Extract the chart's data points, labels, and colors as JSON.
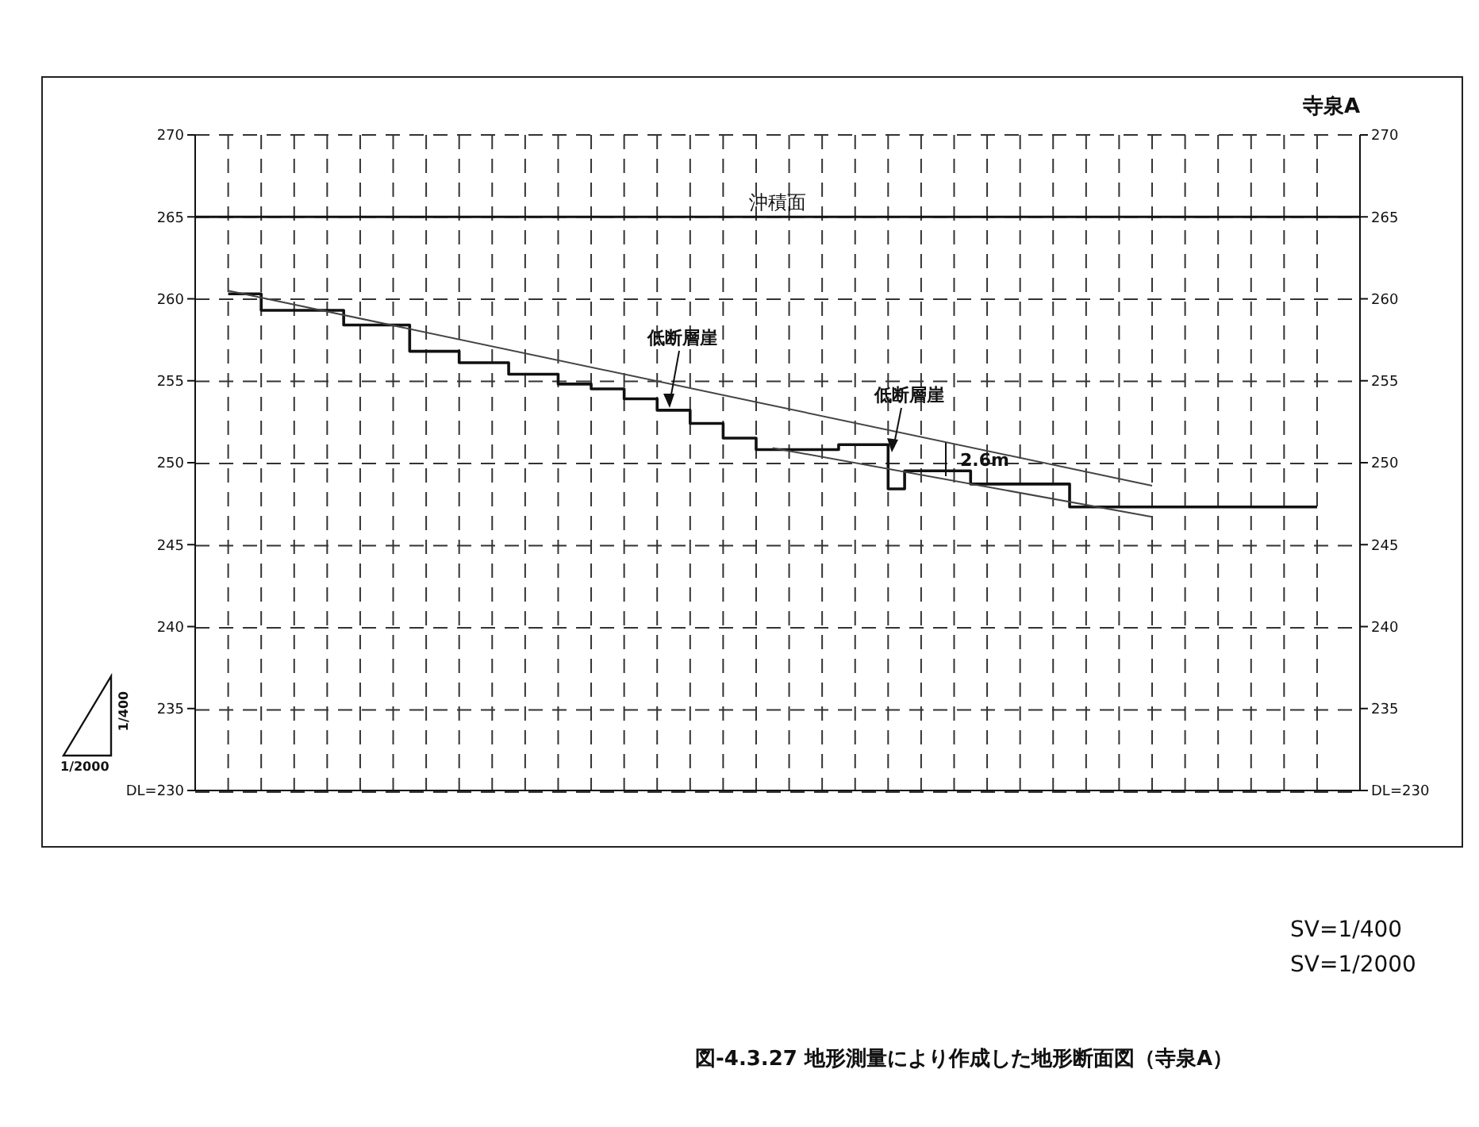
{
  "chart_data": {
    "type": "step",
    "title": "図-4.3.27 地形測量により作成した地形断面図（寺泉A）",
    "subtitle": "寺泉A",
    "categories": [
      null,
      null,
      null,
      null,
      null,
      null,
      null,
      null,
      null,
      null,
      null,
      null,
      null,
      null,
      null,
      null,
      null,
      null,
      null,
      null,
      null,
      null,
      null,
      null,
      null,
      null,
      null,
      null,
      null,
      null,
      null,
      null,
      null,
      null,
      null,
      null,
      null,
      null,
      null,
      null,
      null,
      null,
      null,
      null,
      null,
      null,
      null,
      null,
      null,
      null,
      null,
      null,
      null,
      null,
      null,
      null,
      null,
      null,
      null,
      null,
      null,
      null,
      null,
      null,
      null,
      null,
      null
    ],
    "series": [
      {
        "type": "step",
        "color": "#111111",
        "values": [
          260.3,
          260.3,
          259.3,
          259.3,
          259.3,
          259.3,
          259.3,
          258.4,
          258.4,
          258.4,
          258.4,
          256.8,
          256.8,
          256.8,
          256.1,
          256.1,
          256.1,
          255.4,
          255.4,
          255.4,
          254.8,
          254.8,
          254.5,
          254.5,
          253.9,
          253.9,
          253.2,
          253.2,
          252.4,
          252.4,
          251.5,
          251.5,
          250.8,
          250.8,
          250.8,
          250.8,
          250.8,
          251.1,
          251.1,
          251.1,
          248.4,
          249.5,
          249.5,
          249.5,
          249.5,
          248.7,
          248.7,
          248.7,
          248.7,
          248.7,
          248.7,
          247.3,
          247.3,
          247.3,
          247.3,
          247.3,
          247.3,
          247.3,
          247.3,
          247.3,
          247.3,
          247.3,
          247.3,
          247.3,
          247.3,
          247.3,
          247.3
        ]
      },
      {
        "type": "line",
        "color": "#444444",
        "values": [
          260.5,
          null,
          null,
          null,
          null,
          null,
          null,
          null,
          null,
          null,
          null,
          null,
          null,
          null,
          null,
          null,
          null,
          null,
          null,
          null,
          null,
          null,
          null,
          null,
          null,
          null,
          null,
          null,
          null,
          null,
          null,
          null,
          null,
          null,
          null,
          null,
          null,
          null,
          null,
          null,
          null,
          null,
          null,
          null,
          null,
          null,
          null,
          null,
          null,
          null,
          null,
          null,
          null,
          null,
          null,
          null,
          248.6,
          null,
          null,
          null,
          null,
          null,
          null,
          null,
          null,
          null,
          null
        ]
      },
      {
        "type": "line",
        "color": "#444444",
        "values": [
          null,
          null,
          null,
          null,
          null,
          null,
          null,
          null,
          null,
          null,
          null,
          null,
          null,
          null,
          null,
          null,
          null,
          null,
          null,
          null,
          null,
          null,
          null,
          null,
          null,
          null,
          null,
          null,
          null,
          null,
          null,
          null,
          null,
          250.9,
          null,
          null,
          null,
          null,
          null,
          null,
          null,
          null,
          null,
          null,
          null,
          null,
          null,
          null,
          null,
          null,
          null,
          null,
          null,
          null,
          null,
          null,
          246.7,
          null,
          null,
          null,
          null,
          null,
          null,
          null,
          null,
          null,
          null
        ]
      }
    ],
    "ylim": [
      230,
      270
    ],
    "yticks": [
      {
        "value": 230,
        "label": "DL=230"
      },
      235,
      240,
      245,
      250,
      255,
      260,
      265,
      270
    ],
    "y2lim": [
      230,
      270
    ],
    "y2ticks": [
      {
        "value": 230,
        "label": "DL=230"
      },
      235,
      240,
      245,
      250,
      255,
      260,
      265,
      270
    ],
    "ref_lines": [
      {
        "axis": "y",
        "value": 265,
        "label": "沖積面",
        "color": "#111111"
      }
    ],
    "annotations": [
      "低断層崖",
      "低断層崖",
      "2.6m",
      "1/400",
      "1/2000",
      "SV=1/400",
      "SV=1/2000"
    ],
    "grid": true,
    "tick_labels": "y"
  }
}
